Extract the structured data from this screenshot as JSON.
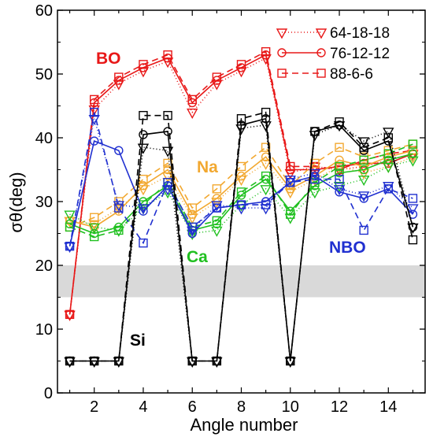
{
  "chart_data": {
    "type": "line",
    "xlabel": "Angle number",
    "ylabel": "σθ(deg)",
    "xlim": [
      0.5,
      15.5
    ],
    "ylim": [
      0,
      60
    ],
    "x_ticks": [
      2,
      4,
      6,
      8,
      10,
      12,
      14
    ],
    "y_ticks": [
      0,
      10,
      20,
      30,
      40,
      50,
      60
    ],
    "shaded_band": [
      15,
      20
    ],
    "grid": false,
    "legend_position": "top-right",
    "x": [
      1,
      2,
      3,
      4,
      5,
      6,
      7,
      8,
      9,
      10,
      11,
      12,
      13,
      14,
      15
    ],
    "compositions": [
      {
        "name": "64-18-18",
        "marker": "triangle-down",
        "dash": "1,3"
      },
      {
        "name": "76-12-12",
        "marker": "circle",
        "dash": ""
      },
      {
        "name": "88-6-6",
        "marker": "square",
        "dash": "8,5"
      }
    ],
    "groups": [
      {
        "label": "BO",
        "color": "#e81818",
        "values": [
          [
            12.3,
            44.5,
            48.5,
            50.5,
            52.0,
            44.0,
            48.5,
            50.5,
            52.5,
            34.5,
            35.5,
            35.0,
            35.5,
            36.5,
            37.5
          ],
          [
            12.3,
            45.5,
            49.0,
            51.0,
            52.5,
            45.5,
            49.0,
            51.0,
            53.0,
            35.0,
            35.0,
            35.5,
            36.0,
            36.0,
            37.5
          ],
          [
            12.3,
            46.0,
            49.5,
            51.5,
            53.0,
            46.0,
            49.5,
            51.5,
            53.5,
            35.5,
            35.5,
            35.0,
            36.5,
            37.5,
            38.0
          ]
        ]
      },
      {
        "label": "Na",
        "color": "#f2a830",
        "values": [
          [
            27.0,
            26.5,
            29.0,
            32.0,
            34.0,
            27.5,
            30.0,
            33.5,
            36.0,
            31.5,
            33.5,
            35.5,
            34.5,
            35.5,
            37.0
          ],
          [
            27.0,
            26.0,
            28.5,
            32.5,
            35.0,
            28.0,
            30.5,
            34.0,
            37.0,
            32.0,
            34.0,
            36.5,
            35.5,
            37.0,
            38.0
          ],
          [
            26.0,
            27.5,
            30.0,
            33.5,
            36.0,
            29.0,
            32.0,
            35.5,
            38.5,
            32.5,
            36.0,
            38.5,
            37.0,
            38.0,
            39.0
          ]
        ]
      },
      {
        "label": "Ca",
        "color": "#20c020",
        "values": [
          [
            28.0,
            26.0,
            25.5,
            29.0,
            31.5,
            25.0,
            25.5,
            29.5,
            32.0,
            27.5,
            31.5,
            32.5,
            33.5,
            35.5,
            36.5
          ],
          [
            26.5,
            25.0,
            26.0,
            30.0,
            32.5,
            25.5,
            26.5,
            31.0,
            33.5,
            28.5,
            32.5,
            34.5,
            35.0,
            36.5,
            37.5
          ],
          [
            26.0,
            24.5,
            25.5,
            29.5,
            33.0,
            26.0,
            27.0,
            31.5,
            34.0,
            28.0,
            33.0,
            35.5,
            36.5,
            37.5,
            39.0
          ]
        ]
      },
      {
        "label": "NBO",
        "color": "#2030d0",
        "values": [
          [
            23.0,
            43.0,
            29.5,
            29.0,
            32.0,
            25.5,
            29.5,
            29.0,
            29.0,
            33.5,
            34.5,
            32.0,
            31.0,
            32.5,
            29.0
          ],
          [
            23.0,
            39.5,
            38.0,
            28.5,
            32.5,
            25.0,
            29.0,
            29.5,
            30.0,
            33.0,
            34.0,
            31.5,
            30.5,
            32.0,
            28.0
          ],
          [
            23.0,
            44.0,
            29.0,
            23.5,
            33.0,
            26.0,
            29.0,
            29.5,
            29.5,
            33.0,
            33.5,
            33.5,
            25.5,
            32.0,
            30.5
          ]
        ]
      },
      {
        "label": "Si",
        "color": "#000000",
        "values": [
          [
            5.0,
            5.0,
            5.0,
            38.5,
            38.0,
            5.0,
            5.0,
            41.5,
            42.0,
            5.0,
            40.5,
            42.0,
            39.5,
            41.0,
            26.0
          ],
          [
            5.0,
            5.0,
            5.0,
            40.5,
            41.0,
            5.0,
            5.0,
            42.0,
            43.0,
            5.0,
            41.0,
            42.0,
            38.0,
            39.5,
            26.0
          ],
          [
            5.0,
            5.0,
            5.0,
            43.5,
            43.5,
            5.0,
            5.0,
            43.0,
            44.0,
            5.0,
            41.0,
            42.5,
            38.5,
            40.0,
            24.0
          ]
        ]
      }
    ]
  }
}
